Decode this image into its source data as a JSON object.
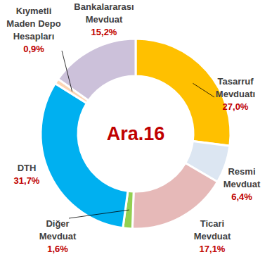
{
  "chart_data": {
    "type": "pie",
    "title": "Ara.16",
    "categories": [
      "Tasarruf Mevduatı",
      "Resmi Mevduat",
      "Ticari Mevduat",
      "Diğer Mevduat",
      "DTH",
      "Kıymetli Maden Depo Hesapları",
      "Bankalararası Mevduat"
    ],
    "values": [
      27.0,
      6.4,
      17.1,
      1.6,
      31.7,
      0.9,
      15.2
    ],
    "value_labels": [
      "27,0%",
      "6,4%",
      "17,1%",
      "1,6%",
      "31,7%",
      "0,9%",
      "15,2%"
    ],
    "colors": [
      "#FFC000",
      "#DCE6F2",
      "#E6B9B8",
      "#92D050",
      "#00B0F0",
      "#FCD5B5",
      "#CCC1DA"
    ],
    "data_labels": true
  }
}
